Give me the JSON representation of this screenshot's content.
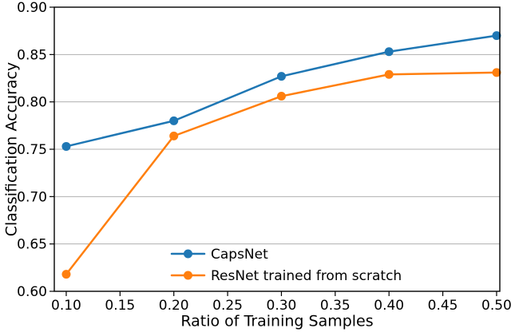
{
  "figure": {
    "background": "#ffffff",
    "text_color": "#000000",
    "grid_color": "#b0b0b0",
    "spine_color": "#000000"
  },
  "chart_data": {
    "type": "line",
    "title": "",
    "xlabel": "Ratio of Training Samples",
    "ylabel": "Classification Accuracy",
    "x": [
      0.1,
      0.2,
      0.3,
      0.4,
      0.5
    ],
    "series": [
      {
        "name": "CapsNet",
        "color": "#1f77b4",
        "marker": "circle",
        "values": [
          0.753,
          0.78,
          0.827,
          0.853,
          0.87
        ]
      },
      {
        "name": "ResNet trained from scratch",
        "color": "#ff7f0e",
        "marker": "circle",
        "values": [
          0.618,
          0.764,
          0.806,
          0.829,
          0.831
        ]
      }
    ],
    "xlim": [
      0.0889,
      0.503
    ],
    "ylim": [
      0.6,
      0.9
    ],
    "xticks": {
      "values": [
        0.1,
        0.15,
        0.2,
        0.25,
        0.3,
        0.35,
        0.4,
        0.45,
        0.5
      ],
      "labels": [
        "0.10",
        "0.15",
        "0.20",
        "0.25",
        "0.30",
        "0.35",
        "0.40",
        "0.45",
        "0.50"
      ]
    },
    "yticks": {
      "values": [
        0.6,
        0.65,
        0.7,
        0.75,
        0.8,
        0.85,
        0.9
      ],
      "labels": [
        "0.60",
        "0.65",
        "0.70",
        "0.75",
        "0.80",
        "0.85",
        "0.90"
      ]
    },
    "grid": "y-only",
    "legend": {
      "position": "lower-center",
      "frame": false,
      "entries": [
        "CapsNet",
        "ResNet trained from scratch"
      ]
    }
  }
}
